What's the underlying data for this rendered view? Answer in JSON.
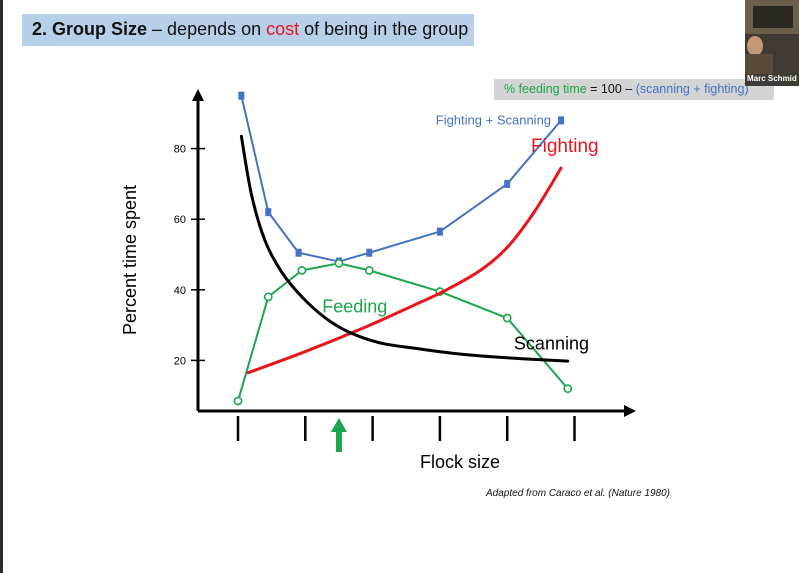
{
  "slide": {
    "title_bold": "2. Group Size",
    "title_mid": " – depends on ",
    "title_red": "cost",
    "title_end": " of being in the group",
    "formula_green": "% feeding time",
    "formula_mid": " = 100 – ",
    "formula_blue": "(scanning + fighting)",
    "credit": "Adapted from Caraco et al. (Nature 1980)",
    "webcam_name": "Marc Schmid",
    "colors": {
      "title_bg": "#b8cfe9",
      "accent_red": "#e8151b",
      "blue": "#4472c4",
      "green": "#1aa64a",
      "black": "#000000",
      "formula_bg": "#d4d4d4"
    }
  },
  "chart_data": {
    "type": "line",
    "xlabel": "Flock size",
    "ylabel": "Percent time spent",
    "ylim": [
      0,
      100
    ],
    "y_ticks": [
      20,
      40,
      60,
      80
    ],
    "x_ticks": [
      1,
      2,
      3,
      4,
      5,
      6
    ],
    "x_tick_labels": [
      "",
      "",
      "",
      "",
      "",
      ""
    ],
    "grid": false,
    "arrow_marker_at": 2.5,
    "series": [
      {
        "name": "Fighting + Scanning",
        "color": "#4472c4",
        "marker": "square",
        "points": [
          [
            1.05,
            95
          ],
          [
            1.45,
            62
          ],
          [
            1.9,
            50.5
          ],
          [
            2.5,
            48
          ],
          [
            2.95,
            50.5
          ],
          [
            4.0,
            56.5
          ],
          [
            5.0,
            70
          ],
          [
            5.8,
            88
          ]
        ]
      },
      {
        "name": "Feeding",
        "color": "#1aa64a",
        "marker": "circle",
        "points": [
          [
            1.0,
            8.5
          ],
          [
            1.45,
            38
          ],
          [
            1.95,
            45.5
          ],
          [
            2.5,
            47.5
          ],
          [
            2.95,
            45.5
          ],
          [
            4.0,
            39.5
          ],
          [
            5.0,
            32
          ],
          [
            5.9,
            12
          ]
        ]
      },
      {
        "name": "Fighting",
        "color": "#e8151b",
        "marker": "none",
        "points": [
          [
            1.15,
            16.5
          ],
          [
            2.0,
            22.5
          ],
          [
            2.9,
            29.5
          ],
          [
            3.6,
            35.5
          ],
          [
            4.1,
            40
          ],
          [
            4.6,
            45.5
          ],
          [
            5.0,
            52
          ],
          [
            5.4,
            62
          ],
          [
            5.8,
            74.5
          ]
        ]
      },
      {
        "name": "Scanning",
        "color": "#000000",
        "marker": "none",
        "points": [
          [
            1.05,
            83.5
          ],
          [
            1.2,
            67
          ],
          [
            1.4,
            54
          ],
          [
            1.65,
            45
          ],
          [
            1.95,
            38
          ],
          [
            2.3,
            32
          ],
          [
            2.65,
            28
          ],
          [
            3.1,
            25
          ],
          [
            3.6,
            23.5
          ],
          [
            4.2,
            22
          ],
          [
            4.8,
            21
          ],
          [
            5.4,
            20.3
          ],
          [
            5.9,
            19.8
          ]
        ]
      }
    ],
    "annotations": [
      {
        "text": "Fighting + Scanning",
        "x": 5.8,
        "y": 88,
        "anchor": "end",
        "dx": -10,
        "dy": 4,
        "color": "#4472c4",
        "size": 13
      },
      {
        "text": "Fighting",
        "x": 5.8,
        "y": 74.5,
        "anchor": "start",
        "dx": -30,
        "dy": -16,
        "color": "#e8151b",
        "size": 19
      },
      {
        "text": "Feeding",
        "x": 2.4,
        "y": 33.5,
        "anchor": "start",
        "dx": -10,
        "dy": 0,
        "color": "#1aa64a",
        "size": 18
      },
      {
        "text": "Scanning",
        "x": 5.1,
        "y": 22,
        "anchor": "start",
        "dx": 0,
        "dy": -4,
        "color": "#000000",
        "size": 18
      }
    ]
  }
}
